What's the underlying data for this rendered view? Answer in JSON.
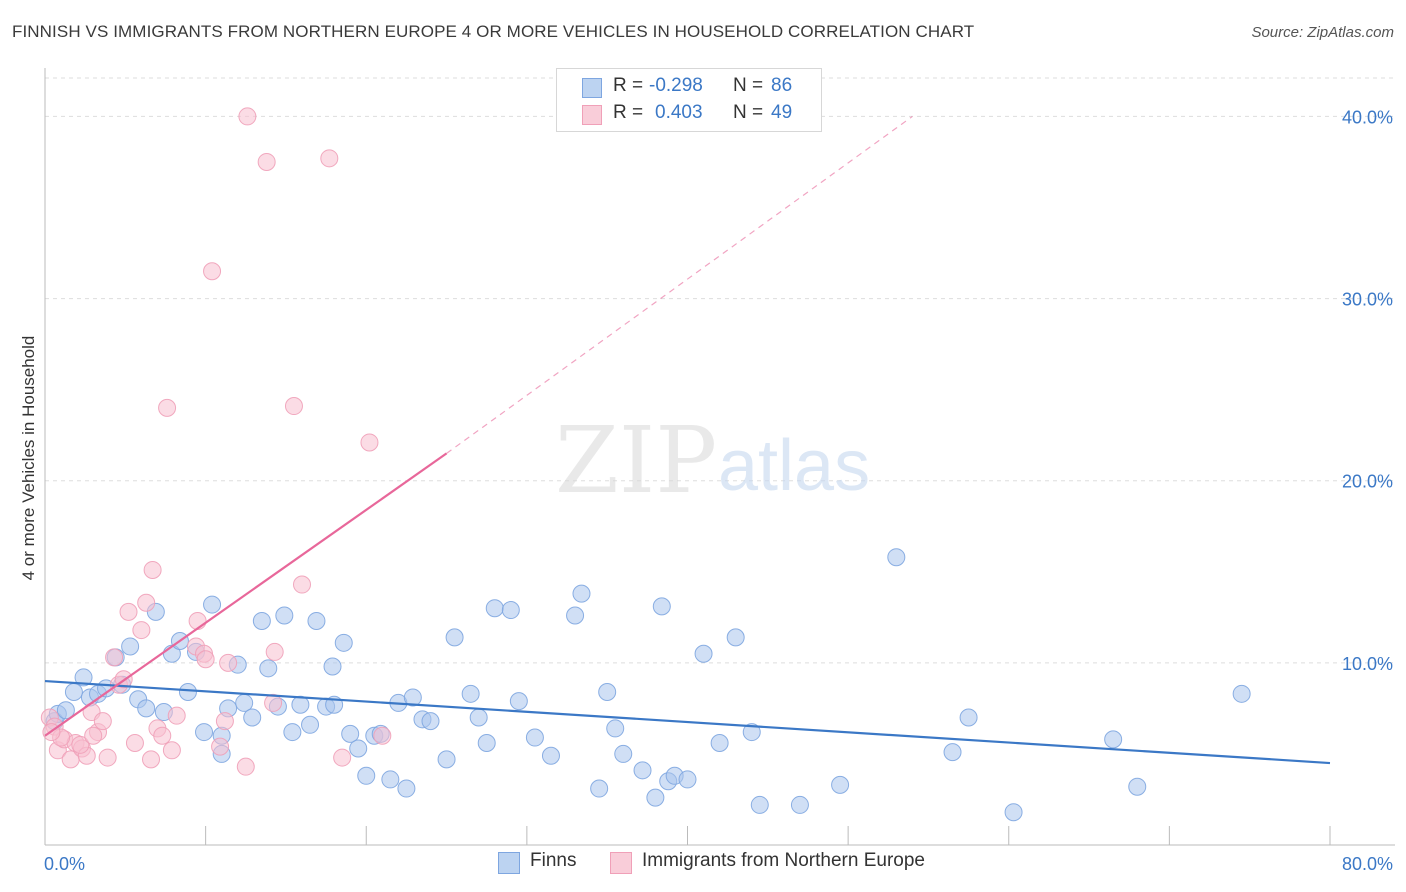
{
  "title": "FINNISH VS IMMIGRANTS FROM NORTHERN EUROPE 4 OR MORE VEHICLES IN HOUSEHOLD CORRELATION CHART",
  "source": "Source: ZipAtlas.com",
  "watermark": {
    "zip": "ZIP",
    "atlas": "atlas"
  },
  "legend": {
    "rows": [
      {
        "r_label": "R =",
        "r_value": "-0.298",
        "n_label": "N =",
        "n_value": "86",
        "color": "#7ea6e0"
      },
      {
        "r_label": "R =",
        "r_value": "0.403",
        "n_label": "N =",
        "n_value": "49",
        "color": "#f0a0b8"
      }
    ]
  },
  "bottom_legend": {
    "series1": "Finns",
    "series2": "Immigrants from Northern Europe"
  },
  "colors": {
    "blue": "#3b78c6",
    "pink": "#e8679a",
    "blue_fill": "#a9c5ec",
    "pink_fill": "#f7bfd0",
    "grid": "#dddddd"
  },
  "chart_data": {
    "type": "scatter",
    "title": "FINNISH VS IMMIGRANTS FROM NORTHERN EUROPE 4 OR MORE VEHICLES IN HOUSEHOLD CORRELATION CHART",
    "xlabel": "",
    "ylabel": "4 or more Vehicles in Household",
    "xlim": [
      0,
      80
    ],
    "ylim": [
      0,
      42
    ],
    "x_tick_labels": [
      "0.0%",
      "80.0%"
    ],
    "y_ticks": [
      10,
      20,
      30,
      40
    ],
    "y_tick_labels": [
      "10.0%",
      "20.0%",
      "30.0%",
      "40.0%"
    ],
    "grid": true,
    "legend_position": "top-center",
    "series": [
      {
        "name": "Finns",
        "color": "#7ea6e0",
        "trend": {
          "x0": 0,
          "y0": 9.0,
          "x1": 80,
          "y1": 4.5
        },
        "points": [
          [
            0.6,
            6.8
          ],
          [
            0.8,
            7.2
          ],
          [
            1.3,
            7.4
          ],
          [
            1.8,
            8.4
          ],
          [
            2.4,
            9.2
          ],
          [
            2.8,
            8.1
          ],
          [
            3.3,
            8.3
          ],
          [
            3.8,
            8.6
          ],
          [
            4.4,
            10.3
          ],
          [
            4.8,
            8.8
          ],
          [
            5.3,
            10.9
          ],
          [
            5.8,
            8.0
          ],
          [
            6.3,
            7.5
          ],
          [
            6.9,
            12.8
          ],
          [
            7.4,
            7.3
          ],
          [
            7.9,
            10.5
          ],
          [
            8.4,
            11.2
          ],
          [
            8.9,
            8.4
          ],
          [
            9.4,
            10.6
          ],
          [
            9.9,
            6.2
          ],
          [
            10.4,
            13.2
          ],
          [
            11.0,
            5.0
          ],
          [
            11.4,
            7.5
          ],
          [
            12.0,
            9.9
          ],
          [
            12.4,
            7.8
          ],
          [
            12.9,
            7.0
          ],
          [
            13.5,
            12.3
          ],
          [
            13.9,
            9.7
          ],
          [
            14.5,
            7.6
          ],
          [
            14.9,
            12.6
          ],
          [
            15.4,
            6.2
          ],
          [
            15.9,
            7.7
          ],
          [
            16.5,
            6.6
          ],
          [
            16.9,
            12.3
          ],
          [
            17.5,
            7.6
          ],
          [
            17.9,
            9.8
          ],
          [
            18.0,
            7.7
          ],
          [
            18.6,
            11.1
          ],
          [
            19.0,
            6.1
          ],
          [
            19.5,
            5.3
          ],
          [
            20.0,
            3.8
          ],
          [
            20.5,
            6.0
          ],
          [
            20.9,
            6.1
          ],
          [
            21.5,
            3.6
          ],
          [
            22.0,
            7.8
          ],
          [
            22.5,
            3.1
          ],
          [
            22.9,
            8.1
          ],
          [
            23.5,
            6.9
          ],
          [
            24.0,
            6.8
          ],
          [
            25.0,
            4.7
          ],
          [
            25.5,
            11.4
          ],
          [
            26.5,
            8.3
          ],
          [
            27.0,
            7.0
          ],
          [
            27.5,
            5.6
          ],
          [
            28.0,
            13.0
          ],
          [
            29.0,
            12.9
          ],
          [
            29.5,
            7.9
          ],
          [
            30.5,
            5.9
          ],
          [
            31.5,
            4.9
          ],
          [
            33.0,
            12.6
          ],
          [
            33.4,
            13.8
          ],
          [
            34.5,
            3.1
          ],
          [
            35.0,
            8.4
          ],
          [
            35.5,
            6.4
          ],
          [
            36.0,
            5.0
          ],
          [
            37.2,
            4.1
          ],
          [
            38.0,
            2.6
          ],
          [
            38.4,
            13.1
          ],
          [
            38.8,
            3.5
          ],
          [
            39.2,
            3.8
          ],
          [
            40.0,
            3.6
          ],
          [
            41.0,
            10.5
          ],
          [
            42.0,
            5.6
          ],
          [
            43.0,
            11.4
          ],
          [
            44.0,
            6.2
          ],
          [
            44.5,
            2.2
          ],
          [
            47.0,
            2.2
          ],
          [
            49.5,
            3.3
          ],
          [
            53.0,
            15.8
          ],
          [
            56.5,
            5.1
          ],
          [
            57.5,
            7.0
          ],
          [
            60.3,
            1.8
          ],
          [
            66.5,
            5.8
          ],
          [
            68.0,
            3.2
          ],
          [
            74.5,
            8.3
          ],
          [
            11.0,
            6.0
          ]
        ]
      },
      {
        "name": "Immigrants from Northern Europe",
        "color": "#f0a0b8",
        "trend": {
          "x0": 0,
          "y0": 6.0,
          "x1": 25,
          "y1": 21.5,
          "dash_to_x": 54,
          "dash_to_y": 40
        },
        "points": [
          [
            0.3,
            7.0
          ],
          [
            0.6,
            6.5
          ],
          [
            0.8,
            5.2
          ],
          [
            1.2,
            5.8
          ],
          [
            1.6,
            4.7
          ],
          [
            1.9,
            5.6
          ],
          [
            2.3,
            5.3
          ],
          [
            2.6,
            4.9
          ],
          [
            2.9,
            7.3
          ],
          [
            3.3,
            6.2
          ],
          [
            3.6,
            6.8
          ],
          [
            3.9,
            4.8
          ],
          [
            4.3,
            10.3
          ],
          [
            4.6,
            8.8
          ],
          [
            4.9,
            9.1
          ],
          [
            5.2,
            12.8
          ],
          [
            5.6,
            5.6
          ],
          [
            6.0,
            11.8
          ],
          [
            6.3,
            13.3
          ],
          [
            6.6,
            4.7
          ],
          [
            6.7,
            15.1
          ],
          [
            7.0,
            6.4
          ],
          [
            7.3,
            6.0
          ],
          [
            7.6,
            24.0
          ],
          [
            7.9,
            5.2
          ],
          [
            8.2,
            7.1
          ],
          [
            9.4,
            10.9
          ],
          [
            9.5,
            12.3
          ],
          [
            9.9,
            10.5
          ],
          [
            10.0,
            10.2
          ],
          [
            10.4,
            31.5
          ],
          [
            10.9,
            5.4
          ],
          [
            11.2,
            6.8
          ],
          [
            11.4,
            10.0
          ],
          [
            12.5,
            4.3
          ],
          [
            12.6,
            40.0
          ],
          [
            13.8,
            37.5
          ],
          [
            14.2,
            7.8
          ],
          [
            14.3,
            10.6
          ],
          [
            15.5,
            24.1
          ],
          [
            16.0,
            14.3
          ],
          [
            17.7,
            37.7
          ],
          [
            18.5,
            4.8
          ],
          [
            20.2,
            22.1
          ],
          [
            21.0,
            6.0
          ],
          [
            2.2,
            5.5
          ],
          [
            1.0,
            5.9
          ],
          [
            3.0,
            6.0
          ],
          [
            0.4,
            6.2
          ]
        ]
      }
    ]
  }
}
